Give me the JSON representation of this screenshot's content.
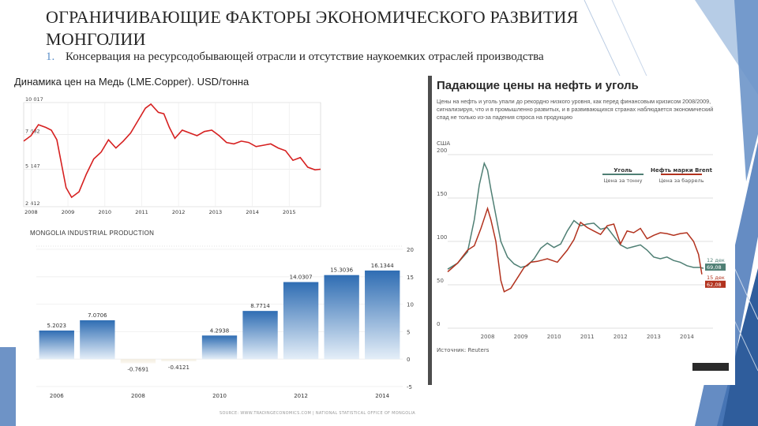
{
  "slide": {
    "title": "ОГРАНИЧИВАЮЩИЕ ФАКТОРЫ ЭКОНОМИЧЕСКОГО РАЗВИТИЯ МОНГОЛИИ",
    "bullet_number": "1.",
    "bullet_text": "Консервация на ресурсодобывающей отрасли и отсутствие наукоемких отраслей производства",
    "accent_colors": [
      "#4a78b8",
      "#2f5d9c",
      "#8fb0d8"
    ]
  },
  "chart_data": [
    {
      "type": "line",
      "title": "Динамика цен на Медь (LME.Copper). USD/тонна",
      "x_ticks": [
        "2008",
        "2009",
        "2010",
        "2011",
        "2012",
        "2013",
        "2014",
        "2015"
      ],
      "y_ticks": [
        "10 017",
        "7 682",
        "5 147",
        "2 412"
      ],
      "ylim": [
        2412,
        10017
      ],
      "series": [
        {
          "color": "#d62020",
          "x": [
            2007.8,
            2008.0,
            2008.2,
            2008.4,
            2008.55,
            2008.7,
            2008.85,
            2008.95,
            2009.1,
            2009.3,
            2009.5,
            2009.7,
            2009.9,
            2010.1,
            2010.3,
            2010.5,
            2010.7,
            2010.9,
            2011.1,
            2011.25,
            2011.45,
            2011.6,
            2011.75,
            2011.9,
            2012.1,
            2012.3,
            2012.5,
            2012.7,
            2012.9,
            2013.1,
            2013.3,
            2013.5,
            2013.7,
            2013.9,
            2014.1,
            2014.3,
            2014.5,
            2014.7,
            2014.9,
            2015.1,
            2015.3,
            2015.5,
            2015.7,
            2015.85
          ],
          "values": [
            7200,
            7600,
            8400,
            8200,
            8000,
            7300,
            5200,
            3800,
            3100,
            3500,
            4800,
            5900,
            6400,
            7300,
            6700,
            7200,
            7800,
            8700,
            9600,
            9900,
            9300,
            9200,
            8200,
            7400,
            8000,
            7800,
            7600,
            7900,
            8000,
            7600,
            7100,
            7000,
            7200,
            7100,
            6800,
            6900,
            7000,
            6700,
            6500,
            5800,
            6000,
            5300,
            5100,
            5150
          ]
        }
      ]
    },
    {
      "type": "bar",
      "title": "MONGOLIA INDUSTRIAL PRODUCTION",
      "categories": [
        "2006",
        "2007",
        "2008",
        "2009",
        "2010",
        "2011",
        "2012",
        "2013",
        "2014"
      ],
      "x_tick_labels": [
        "2006",
        "2008",
        "2010",
        "2012",
        "2014"
      ],
      "values": [
        5.2023,
        7.0706,
        -0.7691,
        -0.4121,
        4.2938,
        8.7714,
        14.0307,
        15.3036,
        16.1344
      ],
      "value_labels": [
        "5.2023",
        "7.0706",
        "-0.7691",
        "-0.4121",
        "4.2938",
        "8.7714",
        "14.0307",
        "15.3036",
        "16.1344"
      ],
      "y_ticks": [
        "20",
        "15",
        "10",
        "5",
        "0",
        "-5"
      ],
      "ylim": [
        -5,
        20
      ],
      "bar_color": "#3f7cbf",
      "footer": "SOURCE: WWW.TRADINGECONOMICS.COM | NATIONAL STATISTICAL OFFICE OF MONGOLIA"
    },
    {
      "type": "line",
      "title": "Падающие цены на нефть и уголь",
      "subtitle": "Цены на нефть и уголь упали до рекордно низкого уровня, как перед финансовым кризисом 2008/2009, сигнализируя, что и в промышленно развитых, и в развивающихся странах наблюдается экономический спад не только из-за падения спроса на продукцию",
      "unit": "США",
      "x_ticks": [
        "2008",
        "2009",
        "2010",
        "2011",
        "2012",
        "2013",
        "2014"
      ],
      "y_ticks": [
        "200",
        "150",
        "100",
        "50",
        "0"
      ],
      "ylim": [
        0,
        200
      ],
      "source": "Источник: Reuters",
      "series": [
        {
          "name": "Уголь",
          "unit_label": "Цена за тонну",
          "color": "#4f7f74",
          "end_label": "12 дек",
          "end_value_label": "69,08",
          "x": [
            2007.3,
            2007.6,
            2007.9,
            2008.1,
            2008.25,
            2008.4,
            2008.5,
            2008.6,
            2008.75,
            2008.9,
            2009.1,
            2009.3,
            2009.5,
            2009.7,
            2009.9,
            2010.1,
            2010.3,
            2010.5,
            2010.7,
            2010.9,
            2011.1,
            2011.3,
            2011.5,
            2011.7,
            2011.9,
            2012.1,
            2012.3,
            2012.5,
            2012.7,
            2012.9,
            2013.1,
            2013.3,
            2013.5,
            2013.7,
            2013.9,
            2014.1,
            2014.3,
            2014.5,
            2014.7,
            2014.9,
            2015.0
          ],
          "values": [
            68,
            75,
            88,
            125,
            165,
            190,
            182,
            160,
            130,
            100,
            82,
            74,
            70,
            72,
            80,
            92,
            98,
            93,
            97,
            112,
            124,
            118,
            120,
            121,
            114,
            116,
            106,
            96,
            92,
            94,
            96,
            90,
            82,
            80,
            82,
            78,
            76,
            72,
            70,
            70,
            69
          ]
        },
        {
          "name": "Нефть марки Brent",
          "unit_label": "Цена за баррель",
          "color": "#b2321e",
          "end_label": "15 дек",
          "end_value_label": "62,08",
          "x": [
            2007.3,
            2007.6,
            2007.9,
            2008.1,
            2008.3,
            2008.5,
            2008.6,
            2008.75,
            2008.9,
            2009.0,
            2009.2,
            2009.4,
            2009.6,
            2009.8,
            2010.0,
            2010.3,
            2010.6,
            2010.9,
            2011.1,
            2011.3,
            2011.5,
            2011.7,
            2011.9,
            2012.1,
            2012.3,
            2012.5,
            2012.7,
            2012.9,
            2013.1,
            2013.3,
            2013.5,
            2013.7,
            2013.9,
            2014.1,
            2014.3,
            2014.5,
            2014.7,
            2014.85,
            2014.95
          ],
          "values": [
            65,
            75,
            90,
            95,
            115,
            138,
            125,
            100,
            55,
            42,
            46,
            58,
            70,
            76,
            77,
            80,
            76,
            90,
            102,
            122,
            116,
            112,
            108,
            118,
            120,
            97,
            112,
            110,
            115,
            103,
            107,
            110,
            109,
            107,
            109,
            110,
            100,
            85,
            62
          ]
        }
      ]
    }
  ]
}
